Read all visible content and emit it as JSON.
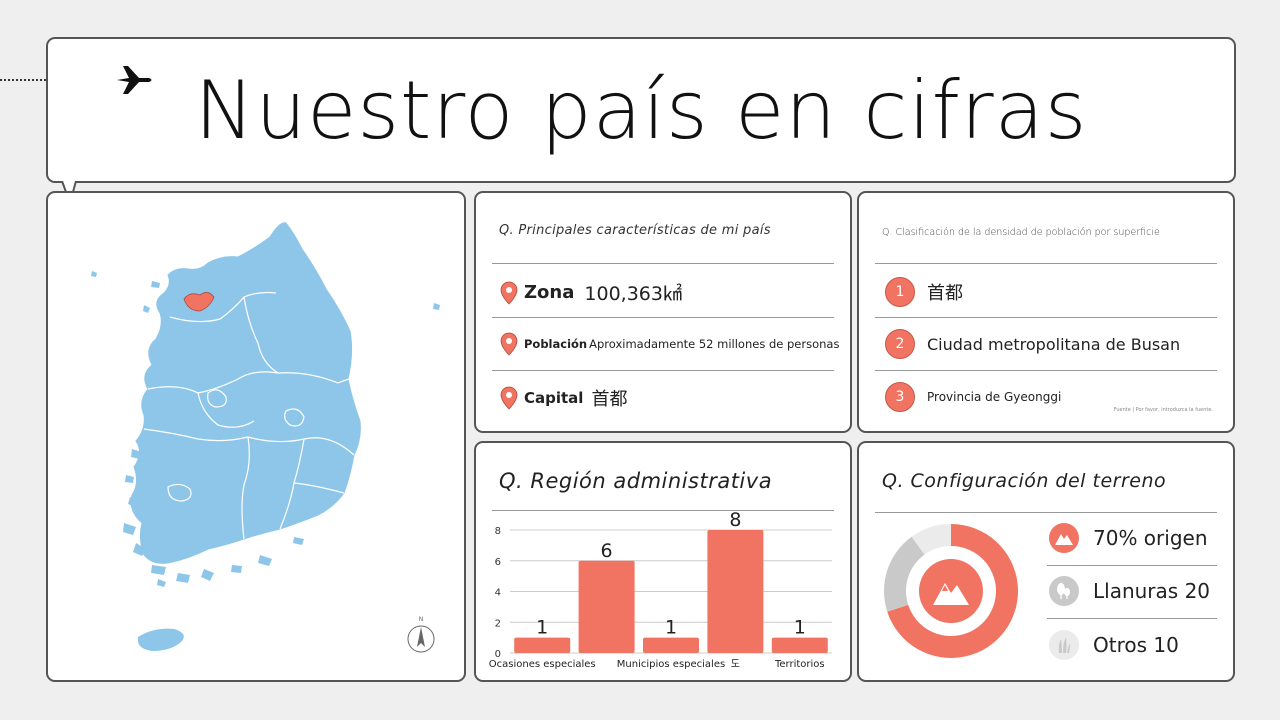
{
  "title": "Nuestro país en cifras",
  "colors": {
    "accent": "#f07461",
    "map_fill": "#8ec6ea",
    "capital_fill": "#f07461",
    "gray": "#c9c9c9",
    "light_gray": "#ebebeb"
  },
  "map": {
    "compass_label": "N"
  },
  "features": {
    "question": "Q. Principales características de mi país",
    "items": [
      {
        "key": "Zona",
        "value": "100,363㎢"
      },
      {
        "key": "Población",
        "value": "Aproximadamente 52 millones de personas"
      },
      {
        "key": "Capital",
        "value": "首都"
      }
    ]
  },
  "density": {
    "question": "Q. Clasificación de la densidad de población por superficie",
    "items": [
      {
        "rank": "1",
        "label": "首都"
      },
      {
        "rank": "2",
        "label": "Ciudad metropolitana de Busan"
      },
      {
        "rank": "3",
        "label": "Provincia de Gyeonggi"
      }
    ],
    "source_note": "Fuente | Por favor, introduzca la fuente."
  },
  "region": {
    "question": "Q. Región administrativa"
  },
  "chart_data": {
    "type": "bar",
    "categories": [
      "Ocasiones especiales",
      "",
      "Municipios especiales",
      "도",
      "Territorios"
    ],
    "values": [
      1,
      6,
      1,
      8,
      1
    ],
    "ylim": [
      0,
      8
    ],
    "yticks": [
      0,
      2,
      4,
      6,
      8
    ],
    "grid": true
  },
  "terrain": {
    "question": "Q. Configuración del terreno",
    "items": [
      {
        "icon": "mountain-icon",
        "label": "70% origen"
      },
      {
        "icon": "trees-icon",
        "label": "Llanuras 20"
      },
      {
        "icon": "grass-icon",
        "label": "Otros 10"
      }
    ],
    "donut": [
      {
        "label": "70% origen",
        "value": 70,
        "color": "#f07461"
      },
      {
        "label": "Llanuras 20",
        "value": 20,
        "color": "#c9c9c9"
      },
      {
        "label": "Otros 10",
        "value": 10,
        "color": "#ebebeb"
      }
    ]
  }
}
